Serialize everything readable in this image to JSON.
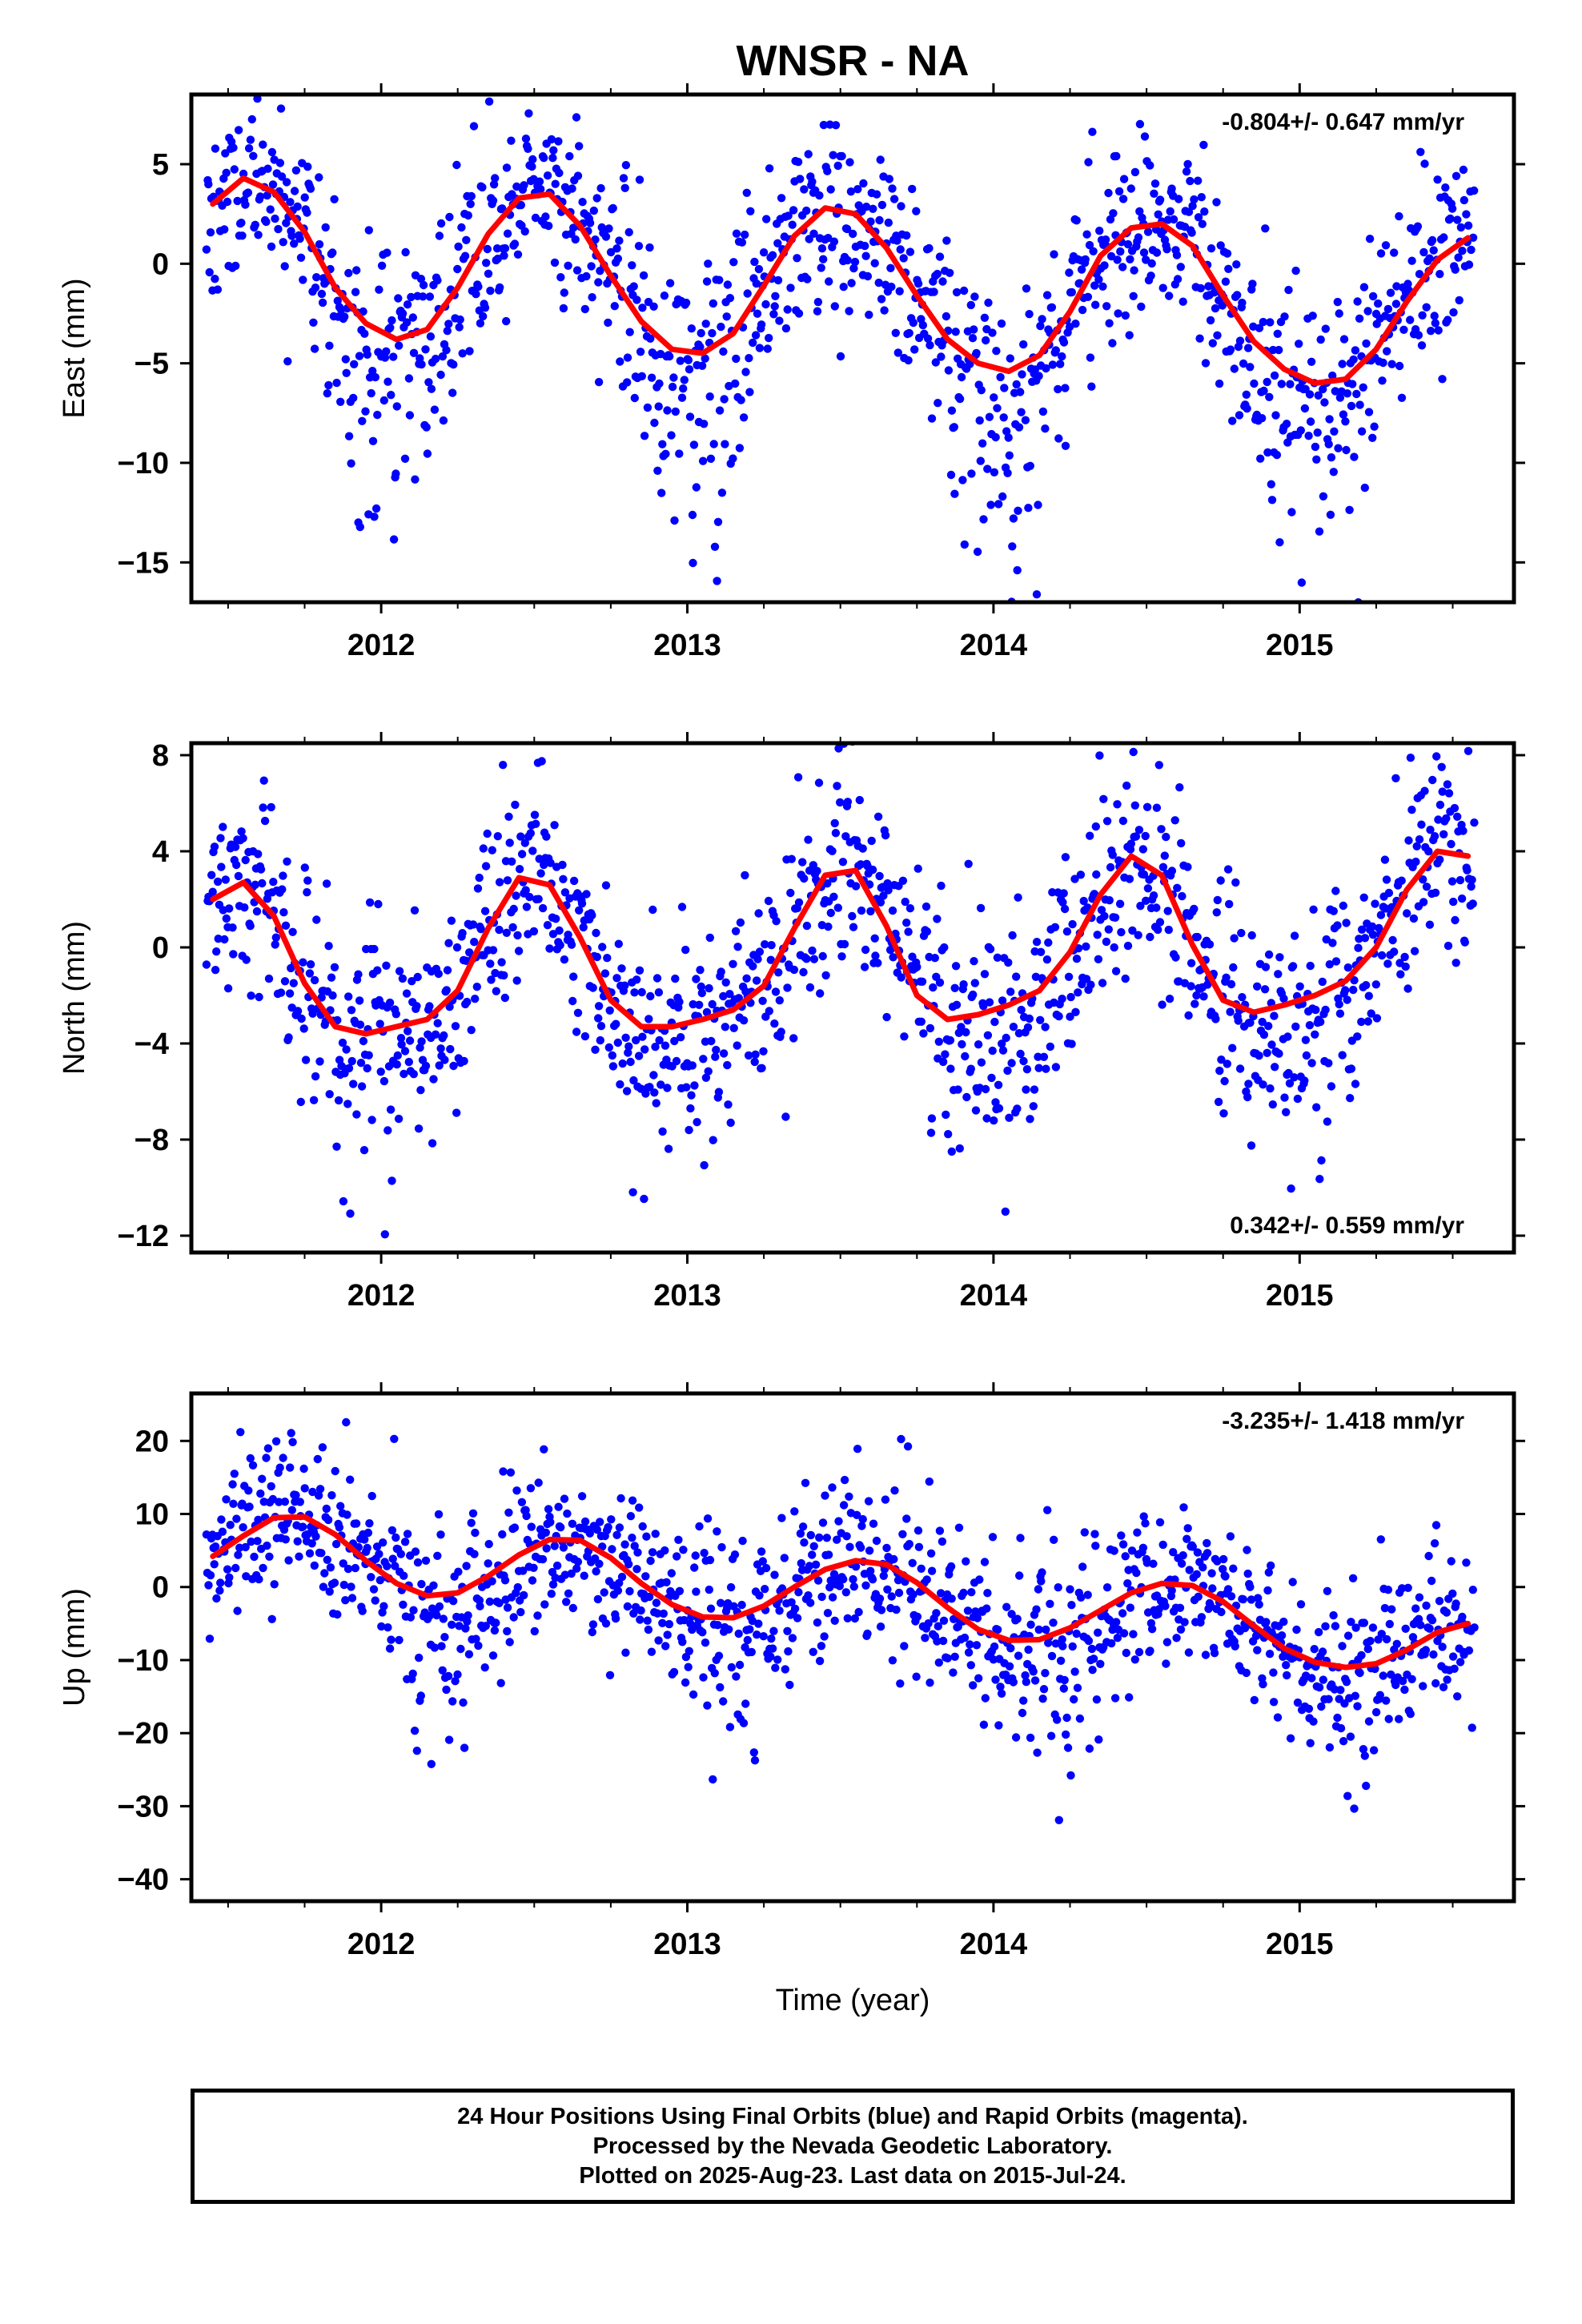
{
  "title": "WNSR - NA",
  "xlabel": "Time (year)",
  "colors": {
    "points": "#0000ff",
    "fit": "#ff0000",
    "frame": "#000000"
  },
  "footer": {
    "line1": "24 Hour Positions Using Final Orbits (blue) and Rapid Orbits (magenta).",
    "line2": "Processed by the Nevada Geodetic Laboratory.",
    "line3": "Plotted on 2025-Aug-23. Last data on 2015-Jul-24."
  },
  "chart_data": [
    {
      "type": "scatter",
      "name": "east",
      "ylabel": "East (mm)",
      "annotation": "-0.804+/- 0.647 mm/yr",
      "annotation_position": "top-right",
      "xlim": [
        2011.38,
        2015.7
      ],
      "ylim": [
        -17,
        8.5
      ],
      "xticks": [
        2012,
        2013,
        2014,
        2015
      ],
      "yticks": [
        5,
        0,
        -5,
        -10,
        -15
      ],
      "fit_series": {
        "name": "fit",
        "x": [
          2011.45,
          2011.55,
          2011.65,
          2011.75,
          2011.85,
          2011.95,
          2012.05,
          2012.15,
          2012.25,
          2012.35,
          2012.45,
          2012.55,
          2012.65,
          2012.75,
          2012.85,
          2012.95,
          2013.05,
          2013.15,
          2013.25,
          2013.35,
          2013.45,
          2013.55,
          2013.65,
          2013.75,
          2013.85,
          2013.95,
          2014.05,
          2014.15,
          2014.25,
          2014.35,
          2014.45,
          2014.55,
          2014.65,
          2014.75,
          2014.85,
          2014.95,
          2015.05,
          2015.15,
          2015.25,
          2015.35,
          2015.45,
          2015.55
        ],
        "y": [
          3.0,
          4.3,
          3.6,
          1.6,
          -1.2,
          -3.0,
          -3.8,
          -3.3,
          -1.2,
          1.5,
          3.3,
          3.5,
          1.9,
          -0.6,
          -2.9,
          -4.3,
          -4.5,
          -3.5,
          -1.1,
          1.4,
          2.8,
          2.5,
          0.8,
          -1.6,
          -3.8,
          -5.0,
          -5.4,
          -4.6,
          -2.4,
          0.4,
          1.8,
          2.0,
          0.9,
          -1.6,
          -3.9,
          -5.3,
          -6.0,
          -5.8,
          -4.3,
          -1.9,
          0.2,
          1.3
        ]
      },
      "point_model": {
        "amplitude_mm": 4.7,
        "phase_year": 2011.55,
        "trend_mm_per_yr": -0.804,
        "noise_mm": 2.4,
        "downward_tail_mm": 12,
        "count": 1280,
        "seed": 11
      }
    },
    {
      "type": "scatter",
      "name": "north",
      "ylabel": "North (mm)",
      "annotation": "0.342+/- 0.559 mm/yr",
      "annotation_position": "bottom-right",
      "xlim": [
        2011.38,
        2015.7
      ],
      "ylim": [
        -12.7,
        8.5
      ],
      "xticks": [
        2012,
        2013,
        2014,
        2015
      ],
      "yticks": [
        8,
        4,
        0,
        -4,
        -8,
        -12
      ],
      "fit_series": {
        "name": "fit",
        "x": [
          2011.45,
          2011.55,
          2011.65,
          2011.75,
          2011.85,
          2011.95,
          2012.05,
          2012.15,
          2012.25,
          2012.35,
          2012.45,
          2012.55,
          2012.65,
          2012.75,
          2012.85,
          2012.95,
          2013.05,
          2013.15,
          2013.25,
          2013.35,
          2013.45,
          2013.55,
          2013.65,
          2013.75,
          2013.85,
          2013.95,
          2014.05,
          2014.15,
          2014.25,
          2014.35,
          2014.45,
          2014.55,
          2014.65,
          2014.75,
          2014.85,
          2014.95,
          2015.05,
          2015.15,
          2015.25,
          2015.35,
          2015.45,
          2015.55
        ],
        "y": [
          2.0,
          2.7,
          1.3,
          -1.5,
          -3.3,
          -3.6,
          -3.3,
          -3.0,
          -1.8,
          0.8,
          2.9,
          2.6,
          0.4,
          -2.2,
          -3.3,
          -3.3,
          -3.0,
          -2.6,
          -1.6,
          0.8,
          3.0,
          3.2,
          0.9,
          -2.0,
          -3.0,
          -2.8,
          -2.4,
          -1.8,
          -0.2,
          2.2,
          3.8,
          3.0,
          0.1,
          -2.2,
          -2.7,
          -2.4,
          -2.0,
          -1.4,
          0.0,
          2.4,
          4.0,
          3.8
        ]
      },
      "point_model": {
        "amplitude_mm": 3.3,
        "phase_year": 2011.5,
        "trend_mm_per_yr": 0.342,
        "noise_mm": 2.1,
        "downward_tail_mm": 5,
        "count": 1280,
        "seed": 23
      }
    },
    {
      "type": "scatter",
      "name": "up",
      "ylabel": "Up (mm)",
      "annotation": "-3.235+/- 1.418 mm/yr",
      "annotation_position": "top-right",
      "xlim": [
        2011.38,
        2015.7
      ],
      "ylim": [
        -43,
        26.5
      ],
      "xticks": [
        2012,
        2013,
        2014,
        2015
      ],
      "yticks": [
        20,
        10,
        0,
        -10,
        -20,
        -30,
        -40
      ],
      "fit_series": {
        "name": "fit",
        "x": [
          2011.45,
          2011.55,
          2011.65,
          2011.75,
          2011.85,
          2011.95,
          2012.05,
          2012.15,
          2012.25,
          2012.35,
          2012.45,
          2012.55,
          2012.65,
          2012.75,
          2012.85,
          2012.95,
          2013.05,
          2013.15,
          2013.25,
          2013.35,
          2013.45,
          2013.55,
          2013.65,
          2013.75,
          2013.85,
          2013.95,
          2014.05,
          2014.15,
          2014.25,
          2014.35,
          2014.45,
          2014.55,
          2014.65,
          2014.75,
          2014.85,
          2014.95,
          2015.05,
          2015.15,
          2015.25,
          2015.35,
          2015.45,
          2015.55
        ],
        "y": [
          4.2,
          7.0,
          9.5,
          9.6,
          7.2,
          3.6,
          0.5,
          -1.2,
          -0.8,
          1.5,
          4.4,
          6.5,
          6.4,
          4.0,
          0.5,
          -2.4,
          -4.1,
          -4.2,
          -2.6,
          0.0,
          2.4,
          3.6,
          3.1,
          0.6,
          -2.8,
          -5.8,
          -7.3,
          -7.2,
          -5.6,
          -3.2,
          -0.8,
          0.5,
          0.2,
          -2.0,
          -5.3,
          -8.4,
          -10.3,
          -11.0,
          -10.5,
          -8.6,
          -6.2,
          -5.0
        ]
      },
      "point_model": {
        "amplitude_mm": 4.5,
        "phase_year": 2011.7,
        "trend_mm_per_yr": -3.235,
        "noise_mm": 5.5,
        "downward_tail_mm": 18,
        "count": 1280,
        "seed": 37
      }
    }
  ]
}
